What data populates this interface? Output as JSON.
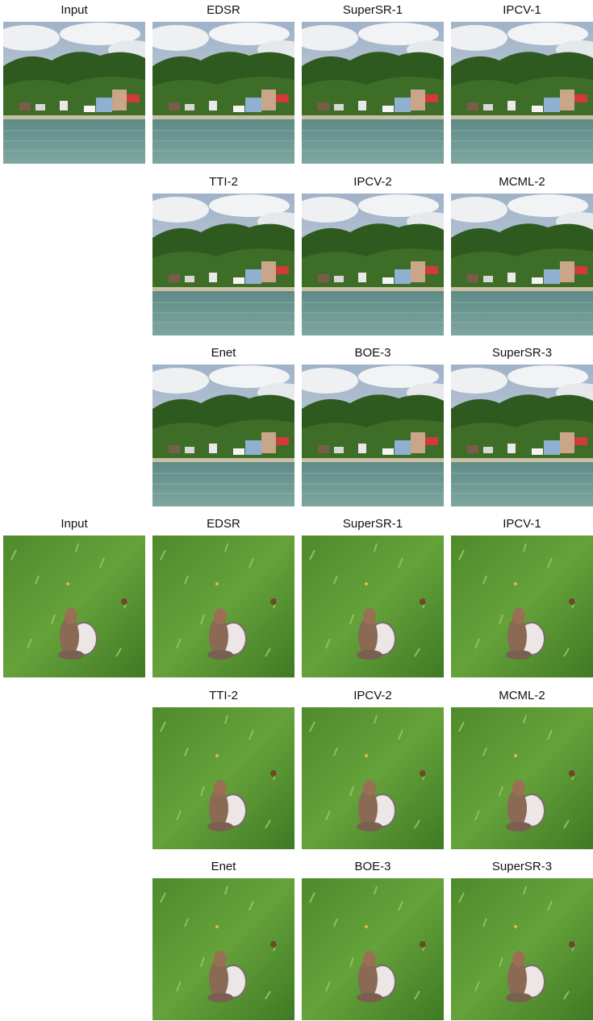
{
  "groups": [
    {
      "input_label": "Input",
      "rows": [
        [
          "EDSR",
          "SuperSR-1",
          "IPCV-1"
        ],
        [
          "TTI-2",
          "IPCV-2",
          "MCML-2"
        ],
        [
          "Enet",
          "BOE-3",
          "SuperSR-3"
        ]
      ]
    },
    {
      "input_label": "Input",
      "rows": [
        [
          "EDSR",
          "SuperSR-1",
          "IPCV-1"
        ],
        [
          "TTI-2",
          "IPCV-2",
          "MCML-2"
        ],
        [
          "Enet",
          "BOE-3",
          "SuperSR-3"
        ]
      ]
    }
  ]
}
